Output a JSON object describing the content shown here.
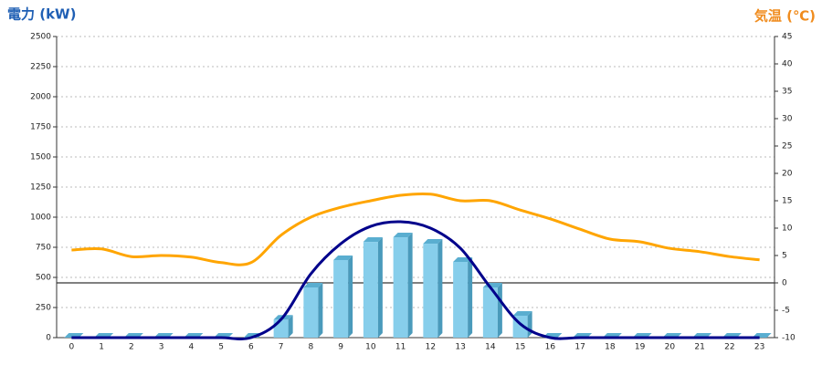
{
  "chart_data": {
    "type": "bar-line",
    "y_title": "電力 (kW)",
    "y2_title": "気温 (℃)",
    "categories": [
      "0",
      "1",
      "2",
      "3",
      "4",
      "5",
      "6",
      "7",
      "8",
      "9",
      "10",
      "11",
      "12",
      "13",
      "14",
      "15",
      "16",
      "17",
      "18",
      "19",
      "20",
      "21",
      "22",
      "23"
    ],
    "ylim": [
      0,
      2500
    ],
    "yticks": [
      0,
      250,
      500,
      750,
      1000,
      1250,
      1500,
      1750,
      2000,
      2250,
      2500
    ],
    "y2lim": [
      -10,
      45
    ],
    "y2ticks": [
      -10,
      -5,
      0,
      5,
      10,
      15,
      20,
      25,
      30,
      35,
      40,
      45
    ],
    "grid": true,
    "series": [
      {
        "type": "bar",
        "color": "#87ceeb",
        "values": [
          0,
          0,
          0,
          0,
          0,
          0,
          0,
          150,
          417,
          644,
          795,
          833,
          780,
          629,
          417,
          182,
          0,
          0,
          0,
          0,
          0,
          0,
          0,
          0
        ]
      },
      {
        "type": "line",
        "color": "#00008b",
        "values": [
          0,
          0,
          0,
          0,
          0,
          0,
          0,
          150,
          530,
          780,
          924,
          962,
          909,
          742,
          417,
          114,
          0,
          0,
          0,
          0,
          0,
          0,
          0,
          0
        ]
      },
      {
        "type": "line",
        "axis": "y2",
        "color": "#ffa500",
        "values": [
          6.0,
          6.2,
          4.8,
          5.0,
          4.7,
          3.7,
          3.7,
          8.7,
          12,
          13.8,
          15,
          16,
          16.2,
          15,
          15,
          13.3,
          11.7,
          9.8,
          8,
          7.5,
          6.3,
          5.7,
          4.8,
          4.2
        ]
      }
    ]
  }
}
